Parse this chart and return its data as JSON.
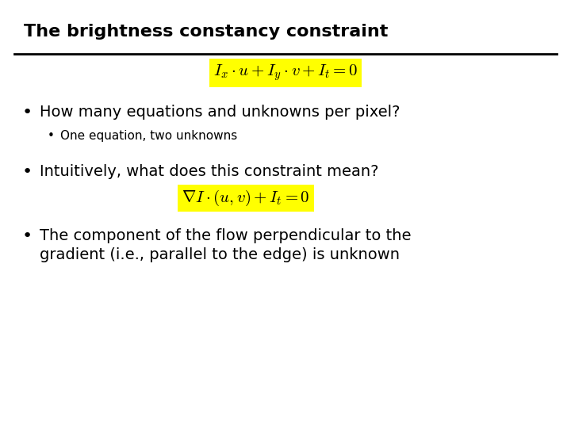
{
  "title": "The brightness constancy constraint",
  "title_fontsize": 16,
  "background_color": "#ffffff",
  "line_color": "#000000",
  "text_color": "#000000",
  "highlight_color": "#ffff00",
  "eq1_latex": "$I_x \\cdot u + I_y \\cdot v + I_t = 0$",
  "eq2_latex": "$\\nabla I \\cdot (u,v) + I_t = 0$",
  "bullet1": "How many equations and unknowns per pixel?",
  "sub_bullet1": "One equation, two unknowns",
  "bullet2": "Intuitively, what does this constraint mean?",
  "bullet3_line1": "The component of the flow perpendicular to the",
  "bullet3_line2": "gradient (i.e., parallel to the edge) is unknown",
  "bullet_fontsize": 14,
  "sub_bullet_fontsize": 11,
  "eq_fontsize": 15
}
